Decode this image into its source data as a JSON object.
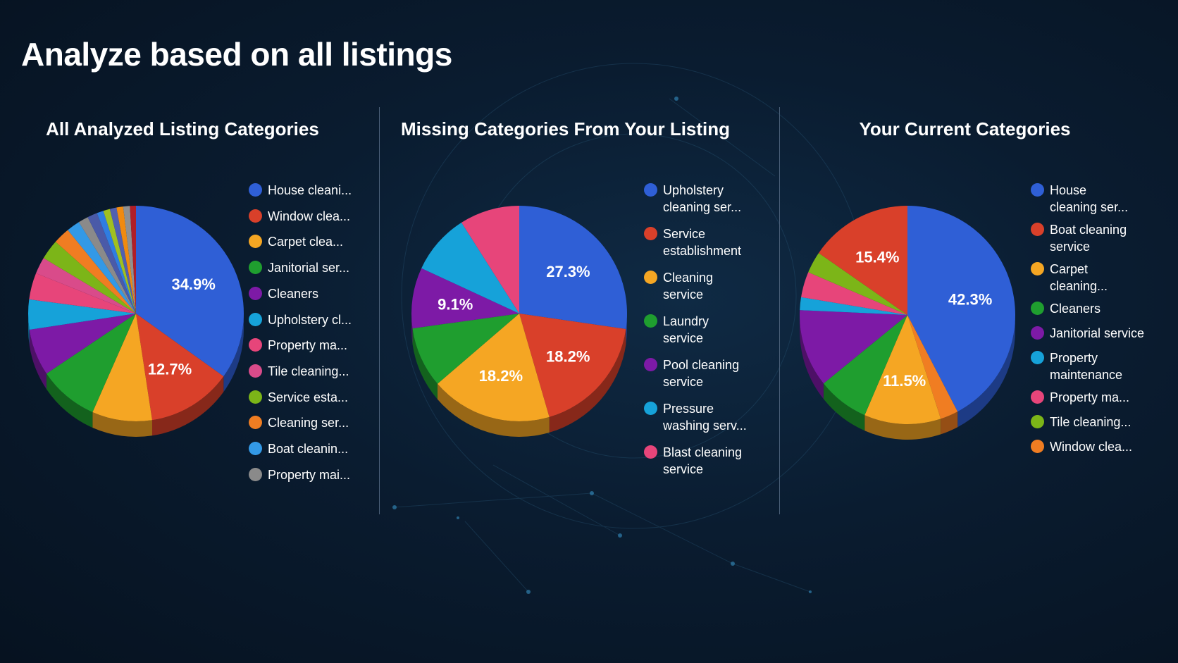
{
  "page": {
    "title": "Analyze based on all listings"
  },
  "colors": {
    "blue": "#2f5fd6",
    "red": "#d9402a",
    "orange_yellow": "#f5a623",
    "green": "#1f9e2f",
    "purple": "#7d1aa6",
    "cyan": "#16a2d9",
    "pink": "#e7457a",
    "rose": "#d94b8a",
    "lime": "#7cb518",
    "orange": "#f07d22",
    "sky": "#3399e6",
    "gray": "#8a8a8a",
    "dark_red": "#b01e28"
  },
  "chart_data": [
    {
      "type": "pie",
      "title": "All Analyzed Listing Categories",
      "slices": [
        {
          "label": "House cleani...",
          "value": 34.9,
          "color": "#2f5fd6",
          "display": "34.9%"
        },
        {
          "label": "Window clea...",
          "value": 12.7,
          "color": "#d9402a",
          "display": "12.7%"
        },
        {
          "label": "Carpet clea...",
          "value": 9.0,
          "color": "#f5a623"
        },
        {
          "label": "Janitorial ser...",
          "value": 9.0,
          "color": "#1f9e2f"
        },
        {
          "label": "Cleaners",
          "value": 7.0,
          "color": "#7d1aa6"
        },
        {
          "label": "Upholstery cl...",
          "value": 4.5,
          "color": "#16a2d9"
        },
        {
          "label": "Property ma...",
          "value": 4.0,
          "color": "#e7457a"
        },
        {
          "label": "Tile cleaning...",
          "value": 2.5,
          "color": "#d94b8a"
        },
        {
          "label": "Service esta...",
          "value": 3.0,
          "color": "#7cb518"
        },
        {
          "label": "Cleaning ser...",
          "value": 2.5,
          "color": "#f07d22"
        },
        {
          "label": "Boat cleanin...",
          "value": 2.0,
          "color": "#3399e6"
        },
        {
          "label": "Property mai...",
          "value": 1.5,
          "color": "#8a8a8a"
        },
        {
          "value": 1.5,
          "color": "#4a5aa8"
        },
        {
          "value": 1.0,
          "color": "#2f7de0"
        },
        {
          "value": 1.0,
          "color": "#a0c020"
        },
        {
          "value": 1.0,
          "color": "#5060b0"
        },
        {
          "value": 1.0,
          "color": "#f08a10"
        },
        {
          "value": 1.0,
          "color": "#909090"
        },
        {
          "value": 0.9,
          "color": "#b01e28"
        }
      ]
    },
    {
      "type": "pie",
      "title": "Missing Categories From Your Listing",
      "slices": [
        {
          "label": "Upholstery cleaning ser...",
          "value": 27.3,
          "color": "#2f5fd6",
          "display": "27.3%"
        },
        {
          "label": "Service establishment",
          "value": 18.2,
          "color": "#d9402a",
          "display": "18.2%"
        },
        {
          "label": "Cleaning service",
          "value": 18.2,
          "color": "#f5a623",
          "display": "18.2%"
        },
        {
          "label": "Laundry service",
          "value": 9.1,
          "color": "#1f9e2f"
        },
        {
          "label": "Pool cleaning service",
          "value": 9.1,
          "color": "#7d1aa6",
          "display": "9.1%"
        },
        {
          "label": "Pressure washing serv...",
          "value": 9.1,
          "color": "#16a2d9"
        },
        {
          "label": "Blast cleaning service",
          "value": 9.0,
          "color": "#e7457a"
        }
      ]
    },
    {
      "type": "pie",
      "title": "Your Current Categories",
      "slices": [
        {
          "label": "House cleaning ser...",
          "value": 42.3,
          "color": "#2f5fd6",
          "display": "42.3%"
        },
        {
          "label": "Window clea...",
          "value": 2.7,
          "color": "#f07d22"
        },
        {
          "label": "Carpet cleaning...",
          "value": 11.5,
          "color": "#f5a623",
          "display": "11.5%"
        },
        {
          "label": "Cleaners",
          "value": 7.7,
          "color": "#1f9e2f"
        },
        {
          "label": "Janitorial service",
          "value": 11.5,
          "color": "#7d1aa6"
        },
        {
          "label": "Property maintenance",
          "value": 1.9,
          "color": "#16a2d9"
        },
        {
          "label": "Property ma...",
          "value": 3.8,
          "color": "#e7457a"
        },
        {
          "label": "Tile cleaning...",
          "value": 3.2,
          "color": "#7cb518"
        },
        {
          "label": "Boat cleaning service",
          "value": 15.4,
          "color": "#d9402a",
          "display": "15.4%"
        }
      ],
      "legend_order": [
        "House cleaning ser...",
        "Boat cleaning service",
        "Carpet cleaning...",
        "Cleaners",
        "Janitorial service",
        "Property maintenance",
        "Property ma...",
        "Tile cleaning...",
        "Window clea..."
      ]
    }
  ],
  "legends": [
    [
      {
        "label": "House cleani...",
        "color": "#2f5fd6"
      },
      {
        "label": "Window clea...",
        "color": "#d9402a"
      },
      {
        "label": "Carpet clea...",
        "color": "#f5a623"
      },
      {
        "label": "Janitorial ser...",
        "color": "#1f9e2f"
      },
      {
        "label": "Cleaners",
        "color": "#7d1aa6"
      },
      {
        "label": "Upholstery cl...",
        "color": "#16a2d9"
      },
      {
        "label": "Property ma...",
        "color": "#e7457a"
      },
      {
        "label": "Tile cleaning...",
        "color": "#d94b8a"
      },
      {
        "label": "Service esta...",
        "color": "#7cb518"
      },
      {
        "label": "Cleaning ser...",
        "color": "#f07d22"
      },
      {
        "label": "Boat cleanin...",
        "color": "#3399e6"
      },
      {
        "label": "Property mai...",
        "color": "#8a8a8a"
      }
    ],
    [
      {
        "line1": "Upholstery",
        "line2": "cleaning ser...",
        "color": "#2f5fd6"
      },
      {
        "line1": "Service",
        "line2": "establishment",
        "color": "#d9402a"
      },
      {
        "line1": "Cleaning",
        "line2": "service",
        "color": "#f5a623"
      },
      {
        "line1": "Laundry",
        "line2": "service",
        "color": "#1f9e2f"
      },
      {
        "line1": "Pool cleaning",
        "line2": "service",
        "color": "#7d1aa6"
      },
      {
        "line1": "Pressure",
        "line2": "washing serv...",
        "color": "#16a2d9"
      },
      {
        "line1": "Blast cleaning",
        "line2": "service",
        "color": "#e7457a"
      }
    ],
    [
      {
        "line1": "House",
        "line2": "cleaning ser...",
        "color": "#2f5fd6"
      },
      {
        "line1": "Boat cleaning",
        "line2": "service",
        "color": "#d9402a"
      },
      {
        "line1": "Carpet",
        "line2": "cleaning...",
        "color": "#f5a623"
      },
      {
        "line1": "Cleaners",
        "color": "#1f9e2f"
      },
      {
        "line1": "Janitorial service",
        "color": "#7d1aa6"
      },
      {
        "line1": "Property",
        "line2": "maintenance",
        "color": "#16a2d9"
      },
      {
        "line1": "Property ma...",
        "color": "#e7457a"
      },
      {
        "line1": "Tile cleaning...",
        "color": "#7cb518"
      },
      {
        "line1": "Window clea...",
        "color": "#f07d22"
      }
    ]
  ]
}
